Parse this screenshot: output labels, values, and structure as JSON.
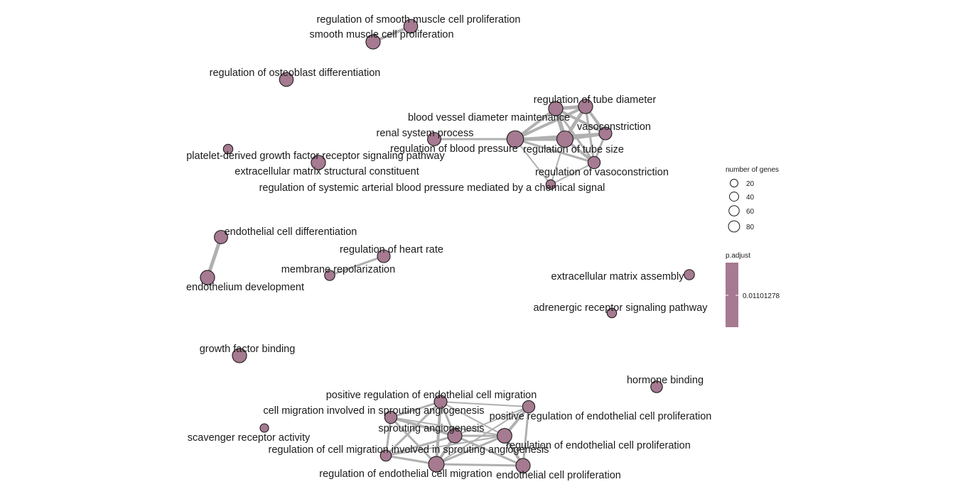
{
  "colors": {
    "node_fill": "#a67a91",
    "node_stroke": "#1a1a1a",
    "edge": "#b0b0b0",
    "colorbar": "#a67a91"
  },
  "nodes": [
    {
      "id": "n1",
      "label": "regulation of smooth muscle cell proliferation",
      "size": 50
    },
    {
      "id": "n2",
      "label": "smooth muscle cell proliferation",
      "size": 55
    },
    {
      "id": "n3",
      "label": "regulation of osteoblast differentiation",
      "size": 50
    },
    {
      "id": "n4",
      "label": "regulation of tube diameter",
      "size": 55
    },
    {
      "id": "n5",
      "label": "blood vessel diameter maintenance",
      "size": 55
    },
    {
      "id": "n6",
      "label": "vasoconstriction",
      "size": 40
    },
    {
      "id": "n7",
      "label": "renal system process",
      "size": 45
    },
    {
      "id": "n8",
      "label": "regulation of blood pressure",
      "size": 85
    },
    {
      "id": "n9",
      "label": "regulation of tube size",
      "size": 80
    },
    {
      "id": "n10",
      "label": "platelet-derived growth factor receptor signaling pathway",
      "size": 15
    },
    {
      "id": "n11",
      "label": "extracellular matrix structural constituent",
      "size": 55
    },
    {
      "id": "n12",
      "label": "regulation of vasoconstriction",
      "size": 35
    },
    {
      "id": "n13",
      "label": "regulation of systemic arterial blood pressure mediated by a chemical signal",
      "size": 15
    },
    {
      "id": "n14",
      "label": "endothelial cell differentiation",
      "size": 45
    },
    {
      "id": "n15",
      "label": "regulation of heart rate",
      "size": 40
    },
    {
      "id": "n16",
      "label": "membrane repolarization",
      "size": 20
    },
    {
      "id": "n17",
      "label": "endothelium development",
      "size": 55
    },
    {
      "id": "n18",
      "label": "extracellular matrix assembly",
      "size": 20
    },
    {
      "id": "n19",
      "label": "adrenergic receptor signaling pathway",
      "size": 15
    },
    {
      "id": "n20",
      "label": "growth factor binding",
      "size": 55
    },
    {
      "id": "n21",
      "label": "hormone binding",
      "size": 30
    },
    {
      "id": "n22",
      "label": "positive regulation of endothelial cell migration",
      "size": 40
    },
    {
      "id": "n23",
      "label": "cell migration involved in sprouting angiogenesis",
      "size": 35
    },
    {
      "id": "n24",
      "label": "positive regulation of endothelial cell proliferation",
      "size": 35
    },
    {
      "id": "n25",
      "label": "sprouting angiogenesis",
      "size": 55
    },
    {
      "id": "n26",
      "label": "scavenger receptor activity",
      "size": 10
    },
    {
      "id": "n27",
      "label": "regulation of cell migration involved in sprouting angiogenesis",
      "size": 25
    },
    {
      "id": "n28",
      "label": "regulation of endothelial cell proliferation",
      "size": 60
    },
    {
      "id": "n29",
      "label": "regulation of endothelial cell migration",
      "size": 70
    },
    {
      "id": "n30",
      "label": "endothelial cell proliferation",
      "size": 55
    }
  ],
  "edges": [
    [
      "n1",
      "n2",
      4
    ],
    [
      "n4",
      "n5",
      5
    ],
    [
      "n4",
      "n6",
      4
    ],
    [
      "n4",
      "n8",
      4
    ],
    [
      "n4",
      "n9",
      6
    ],
    [
      "n4",
      "n12",
      3
    ],
    [
      "n5",
      "n6",
      4
    ],
    [
      "n5",
      "n8",
      4
    ],
    [
      "n5",
      "n9",
      5
    ],
    [
      "n5",
      "n12",
      3
    ],
    [
      "n6",
      "n8",
      3
    ],
    [
      "n6",
      "n9",
      5
    ],
    [
      "n6",
      "n12",
      3
    ],
    [
      "n7",
      "n8",
      3
    ],
    [
      "n8",
      "n9",
      5
    ],
    [
      "n8",
      "n12",
      3
    ],
    [
      "n8",
      "n13",
      2
    ],
    [
      "n9",
      "n12",
      4
    ],
    [
      "n9",
      "n13",
      2
    ],
    [
      "n12",
      "n13",
      2
    ],
    [
      "n14",
      "n17",
      5
    ],
    [
      "n15",
      "n16",
      3
    ],
    [
      "n22",
      "n23",
      3
    ],
    [
      "n22",
      "n25",
      3
    ],
    [
      "n22",
      "n27",
      3
    ],
    [
      "n22",
      "n29",
      4
    ],
    [
      "n22",
      "n28",
      2
    ],
    [
      "n22",
      "n24",
      2
    ],
    [
      "n23",
      "n25",
      4
    ],
    [
      "n23",
      "n27",
      3
    ],
    [
      "n23",
      "n29",
      3
    ],
    [
      "n23",
      "n28",
      2
    ],
    [
      "n24",
      "n28",
      4
    ],
    [
      "n24",
      "n30",
      3
    ],
    [
      "n24",
      "n29",
      2
    ],
    [
      "n24",
      "n25",
      2
    ],
    [
      "n25",
      "n27",
      3
    ],
    [
      "n25",
      "n29",
      4
    ],
    [
      "n25",
      "n28",
      3
    ],
    [
      "n25",
      "n30",
      3
    ],
    [
      "n27",
      "n29",
      3
    ],
    [
      "n27",
      "n28",
      2
    ],
    [
      "n28",
      "n30",
      4
    ],
    [
      "n28",
      "n29",
      3
    ],
    [
      "n29",
      "n30",
      3
    ]
  ],
  "legend": {
    "size_title": "number of genes",
    "size_breaks": [
      {
        "label": "20",
        "value": 20
      },
      {
        "label": "40",
        "value": 40
      },
      {
        "label": "60",
        "value": 60
      },
      {
        "label": "80",
        "value": 80
      }
    ],
    "color_title": "p.adjust",
    "color_value": "0.01101278"
  }
}
